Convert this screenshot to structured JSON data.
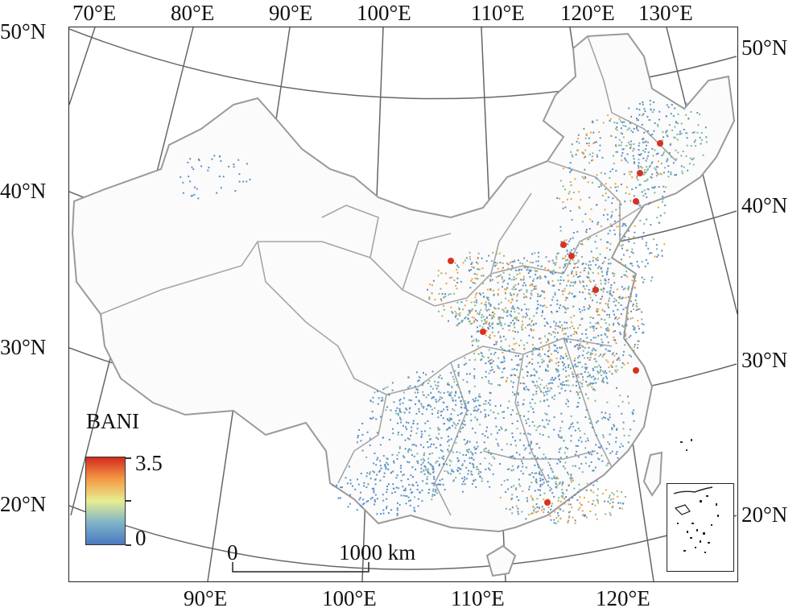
{
  "legend": {
    "title": "BANI",
    "max_label": "3.5",
    "min_label": "0",
    "colors": [
      "#4a79c0",
      "#7fb3c8",
      "#e7ee92",
      "#f59a45",
      "#d42b1f"
    ]
  },
  "scale_bar": {
    "zero": "0",
    "end": "1000 km"
  },
  "graticule": {
    "top_labels": [
      "70°E",
      "80°E",
      "90°E",
      "100°E",
      "110°E",
      "120°E",
      "130°E"
    ],
    "bottom_labels": [
      "90°E",
      "100°E",
      "110°E",
      "120°E"
    ],
    "left_labels": [
      "50°N",
      "40°N",
      "30°N",
      "20°N"
    ],
    "right_labels": [
      "50°N",
      "40°N",
      "30°N",
      "20°N"
    ]
  },
  "colors": {
    "border": "#999999",
    "graticule": "#666666",
    "low": "#5c8fc6",
    "mid": "#7fb79a",
    "high": "#f0a040",
    "peak": "#d8321f"
  }
}
